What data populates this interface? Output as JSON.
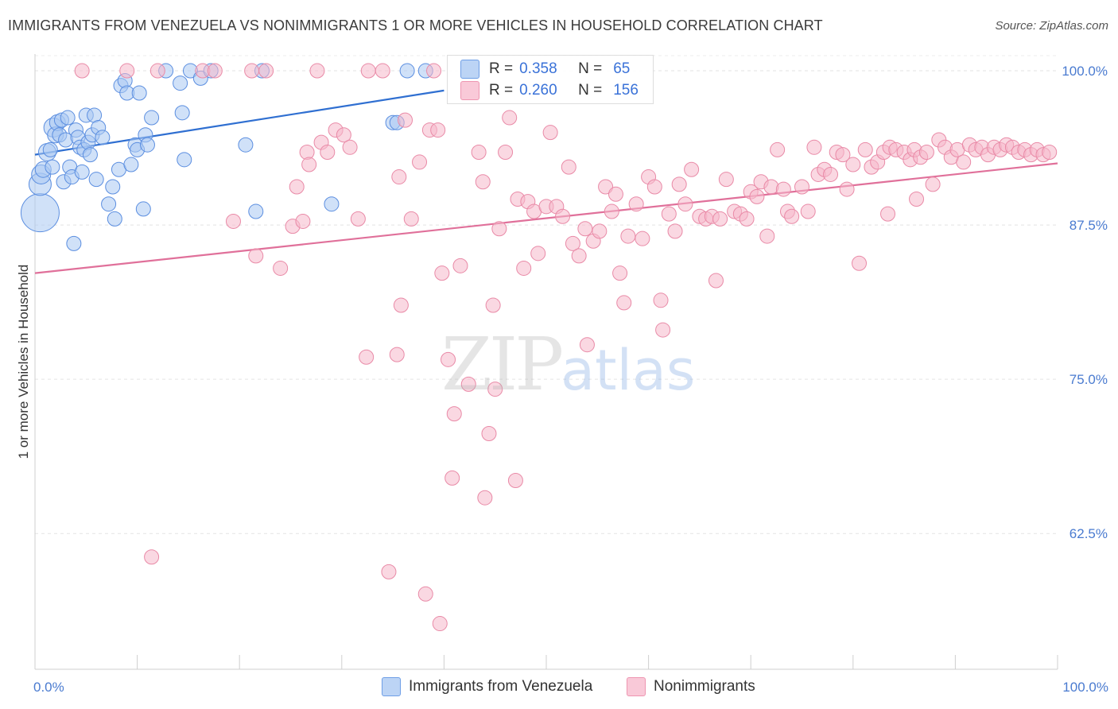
{
  "chart_data": {
    "type": "scatter",
    "title": "IMMIGRANTS FROM VENEZUELA VS NONIMMIGRANTS 1 OR MORE VEHICLES IN HOUSEHOLD CORRELATION CHART",
    "source": "Source: ZipAtlas.com",
    "xlabel": "",
    "ylabel": "1 or more Vehicles in Household",
    "xlim": [
      0,
      100
    ],
    "ylim": [
      51.5,
      102
    ],
    "x_tick_labels": [
      {
        "value": 0,
        "label": "0.0%"
      },
      {
        "value": 100,
        "label": "100.0%"
      }
    ],
    "y_ticks": [
      {
        "value": 100,
        "label": "100.0%"
      },
      {
        "value": 87.5,
        "label": "87.5%"
      },
      {
        "value": 75,
        "label": "75.0%"
      },
      {
        "value": 62.5,
        "label": "62.5%"
      }
    ],
    "watermark": {
      "zip": "ZIP",
      "atlas": "atlas"
    },
    "legend": {
      "series": [
        {
          "r_label": "R =",
          "r_value": "0.358",
          "n_label": "N =",
          "n_value": "65",
          "color": "#a9c8f2"
        },
        {
          "r_label": "R =",
          "r_value": "0.260",
          "n_label": "N =",
          "n_value": "156",
          "color": "#f6b8cb"
        }
      ]
    },
    "series": [
      {
        "name": "Immigrants from Venezuela",
        "color": "#a9c8f2",
        "stroke": "#5b8ee0",
        "trend_color": "#2f6fd1",
        "trend": {
          "x0": 0,
          "y0": 93.2,
          "x1": 40,
          "y1": 98.4
        },
        "points": [
          [
            0.5,
            88.5,
            24
          ],
          [
            0.5,
            90.8,
            14
          ],
          [
            0.6,
            91.6,
            12
          ],
          [
            0.8,
            92.0,
            10
          ],
          [
            1.2,
            93.4,
            11
          ],
          [
            1.5,
            93.6,
            9
          ],
          [
            1.7,
            92.2,
            9
          ],
          [
            1.8,
            95.4,
            12
          ],
          [
            2.0,
            94.8,
            10
          ],
          [
            2.2,
            95.8,
            10
          ],
          [
            2.4,
            94.8,
            9
          ],
          [
            2.6,
            96.0,
            9
          ],
          [
            2.8,
            91.0,
            9
          ],
          [
            3.0,
            94.4,
            9
          ],
          [
            3.2,
            96.2,
            9
          ],
          [
            3.4,
            92.2,
            9
          ],
          [
            3.6,
            91.4,
            9
          ],
          [
            3.8,
            86.0,
            9
          ],
          [
            4.0,
            95.2,
            9
          ],
          [
            4.2,
            94.6,
            9
          ],
          [
            4.4,
            93.8,
            9
          ],
          [
            4.6,
            91.8,
            9
          ],
          [
            4.8,
            93.6,
            9
          ],
          [
            5.0,
            96.4,
            9
          ],
          [
            5.2,
            94.2,
            9
          ],
          [
            5.4,
            93.2,
            9
          ],
          [
            5.6,
            94.8,
            9
          ],
          [
            5.8,
            96.4,
            9
          ],
          [
            6.0,
            91.2,
            9
          ],
          [
            6.2,
            95.4,
            9
          ],
          [
            6.6,
            94.6,
            9
          ],
          [
            7.2,
            89.2,
            9
          ],
          [
            7.6,
            90.6,
            9
          ],
          [
            7.8,
            88.0,
            9
          ],
          [
            8.2,
            92.0,
            9
          ],
          [
            8.4,
            98.8,
            9
          ],
          [
            8.8,
            99.2,
            9
          ],
          [
            9.0,
            98.2,
            9
          ],
          [
            9.4,
            92.4,
            9
          ],
          [
            9.8,
            94.0,
            9
          ],
          [
            10.0,
            93.6,
            9
          ],
          [
            10.2,
            98.2,
            9
          ],
          [
            10.6,
            88.8,
            9
          ],
          [
            10.8,
            94.8,
            9
          ],
          [
            11.0,
            94.0,
            9
          ],
          [
            11.4,
            96.2,
            9
          ],
          [
            12.8,
            100.0,
            9
          ],
          [
            14.2,
            99.0,
            9
          ],
          [
            14.4,
            96.6,
            9
          ],
          [
            14.6,
            92.8,
            9
          ],
          [
            15.2,
            100.0,
            9
          ],
          [
            16.2,
            99.4,
            9
          ],
          [
            17.2,
            100.0,
            9
          ],
          [
            20.6,
            94.0,
            9
          ],
          [
            21.6,
            88.6,
            9
          ],
          [
            22.2,
            100.0,
            9
          ],
          [
            29.0,
            89.2,
            9
          ],
          [
            35.0,
            95.8,
            9
          ],
          [
            35.4,
            95.8,
            9
          ],
          [
            36.4,
            100.0,
            9
          ],
          [
            38.2,
            100.0,
            9
          ]
        ]
      },
      {
        "name": "Nonimmigrants",
        "color": "#f6b8cb",
        "stroke": "#e98aa7",
        "trend_color": "#e0709a",
        "trend": {
          "x0": 0,
          "y0": 83.6,
          "x1": 100,
          "y1": 92.5
        },
        "points": [
          [
            4.6,
            100.0,
            9
          ],
          [
            9.0,
            100.0,
            9
          ],
          [
            12.0,
            100.0,
            9
          ],
          [
            16.4,
            100.0,
            9
          ],
          [
            17.6,
            100.0,
            9
          ],
          [
            21.2,
            100.0,
            9
          ],
          [
            22.6,
            100.0,
            9
          ],
          [
            27.6,
            100.0,
            9
          ],
          [
            32.6,
            100.0,
            9
          ],
          [
            34.0,
            100.0,
            9
          ],
          [
            39.0,
            100.0,
            9
          ],
          [
            11.4,
            60.6,
            9
          ],
          [
            19.4,
            87.8,
            9
          ],
          [
            21.6,
            85.0,
            9
          ],
          [
            24.0,
            84.0,
            9
          ],
          [
            25.2,
            87.4,
            9
          ],
          [
            25.6,
            90.6,
            9
          ],
          [
            26.2,
            87.8,
            9
          ],
          [
            26.6,
            93.4,
            9
          ],
          [
            26.8,
            92.4,
            9
          ],
          [
            28.0,
            94.2,
            9
          ],
          [
            28.6,
            93.4,
            9
          ],
          [
            29.4,
            95.2,
            9
          ],
          [
            30.2,
            94.8,
            9
          ],
          [
            30.8,
            93.8,
            9
          ],
          [
            31.6,
            88.0,
            9
          ],
          [
            32.4,
            76.8,
            9
          ],
          [
            34.6,
            59.4,
            9
          ],
          [
            35.4,
            77.0,
            9
          ],
          [
            35.6,
            91.4,
            9
          ],
          [
            35.8,
            81.0,
            9
          ],
          [
            36.2,
            96.0,
            9
          ],
          [
            36.8,
            88.0,
            9
          ],
          [
            37.6,
            92.6,
            9
          ],
          [
            38.2,
            57.6,
            9
          ],
          [
            38.6,
            95.2,
            9
          ],
          [
            39.4,
            95.2,
            9
          ],
          [
            39.8,
            83.6,
            9
          ],
          [
            39.6,
            55.2,
            9
          ],
          [
            40.4,
            76.6,
            9
          ],
          [
            40.8,
            67.0,
            9
          ],
          [
            41.0,
            72.2,
            9
          ],
          [
            41.6,
            84.2,
            9
          ],
          [
            42.4,
            74.6,
            9
          ],
          [
            43.4,
            93.4,
            9
          ],
          [
            43.8,
            91.0,
            9
          ],
          [
            44.0,
            65.4,
            9
          ],
          [
            44.4,
            70.6,
            9
          ],
          [
            44.8,
            81.0,
            9
          ],
          [
            45.0,
            74.2,
            9
          ],
          [
            45.4,
            87.2,
            9
          ],
          [
            46.0,
            93.4,
            9
          ],
          [
            46.4,
            96.2,
            9
          ],
          [
            47.0,
            66.8,
            9
          ],
          [
            47.2,
            89.6,
            9
          ],
          [
            47.8,
            84.0,
            9
          ],
          [
            48.2,
            89.4,
            9
          ],
          [
            48.8,
            88.6,
            9
          ],
          [
            49.2,
            85.2,
            9
          ],
          [
            50.0,
            89.0,
            9
          ],
          [
            50.4,
            95.0,
            9
          ],
          [
            51.0,
            89.0,
            9
          ],
          [
            51.6,
            88.2,
            9
          ],
          [
            52.2,
            92.2,
            9
          ],
          [
            52.6,
            86.0,
            9
          ],
          [
            53.2,
            85.0,
            9
          ],
          [
            53.8,
            87.2,
            9
          ],
          [
            54.0,
            77.8,
            9
          ],
          [
            54.6,
            86.2,
            9
          ],
          [
            55.2,
            87.0,
            9
          ],
          [
            55.8,
            90.6,
            9
          ],
          [
            56.4,
            88.6,
            9
          ],
          [
            56.8,
            90.0,
            9
          ],
          [
            57.2,
            83.6,
            9
          ],
          [
            57.6,
            81.2,
            9
          ],
          [
            58.0,
            86.6,
            9
          ],
          [
            58.8,
            89.2,
            9
          ],
          [
            59.4,
            86.4,
            9
          ],
          [
            60.0,
            91.4,
            9
          ],
          [
            60.6,
            90.6,
            9
          ],
          [
            61.2,
            81.4,
            9
          ],
          [
            61.4,
            79.0,
            9
          ],
          [
            62.0,
            88.4,
            9
          ],
          [
            62.6,
            87.0,
            9
          ],
          [
            63.0,
            90.8,
            9
          ],
          [
            63.6,
            89.2,
            9
          ],
          [
            64.2,
            92.0,
            9
          ],
          [
            65.0,
            88.2,
            9
          ],
          [
            65.6,
            88.0,
            9
          ],
          [
            66.2,
            88.2,
            9
          ],
          [
            66.6,
            83.0,
            9
          ],
          [
            67.0,
            88.0,
            9
          ],
          [
            67.6,
            91.2,
            9
          ],
          [
            68.4,
            88.6,
            9
          ],
          [
            69.0,
            88.4,
            9
          ],
          [
            69.6,
            88.0,
            9
          ],
          [
            70.0,
            90.2,
            9
          ],
          [
            70.6,
            89.8,
            9
          ],
          [
            71.0,
            91.0,
            9
          ],
          [
            71.6,
            86.6,
            9
          ],
          [
            72.0,
            90.6,
            9
          ],
          [
            72.6,
            93.6,
            9
          ],
          [
            73.2,
            90.4,
            9
          ],
          [
            73.6,
            88.6,
            9
          ],
          [
            74.0,
            88.2,
            9
          ],
          [
            75.0,
            90.6,
            9
          ],
          [
            75.6,
            88.6,
            9
          ],
          [
            76.2,
            93.8,
            9
          ],
          [
            76.6,
            91.6,
            9
          ],
          [
            77.2,
            92.0,
            9
          ],
          [
            77.8,
            91.6,
            9
          ],
          [
            78.4,
            93.4,
            9
          ],
          [
            79.0,
            93.2,
            9
          ],
          [
            79.4,
            90.4,
            9
          ],
          [
            80.0,
            92.4,
            9
          ],
          [
            80.6,
            84.4,
            9
          ],
          [
            81.2,
            93.6,
            9
          ],
          [
            81.8,
            92.2,
            9
          ],
          [
            82.4,
            92.6,
            9
          ],
          [
            83.0,
            93.4,
            9
          ],
          [
            83.6,
            93.8,
            9
          ],
          [
            84.2,
            93.6,
            9
          ],
          [
            85.0,
            93.4,
            9
          ],
          [
            85.6,
            92.8,
            9
          ],
          [
            86.0,
            93.6,
            9
          ],
          [
            86.6,
            93.0,
            9
          ],
          [
            87.2,
            93.4,
            9
          ],
          [
            87.8,
            90.8,
            9
          ],
          [
            88.4,
            94.4,
            9
          ],
          [
            89.0,
            93.8,
            9
          ],
          [
            89.6,
            93.0,
            9
          ],
          [
            90.2,
            93.6,
            9
          ],
          [
            90.8,
            92.6,
            9
          ],
          [
            91.4,
            94.0,
            9
          ],
          [
            92.0,
            93.6,
            9
          ],
          [
            92.6,
            93.8,
            9
          ],
          [
            93.2,
            93.2,
            9
          ],
          [
            93.8,
            93.8,
            9
          ],
          [
            94.4,
            93.6,
            9
          ],
          [
            95.0,
            94.0,
            9
          ],
          [
            95.6,
            93.8,
            9
          ],
          [
            96.2,
            93.4,
            9
          ],
          [
            96.8,
            93.6,
            9
          ],
          [
            97.4,
            93.2,
            9
          ],
          [
            98.0,
            93.6,
            9
          ],
          [
            98.6,
            93.2,
            9
          ],
          [
            99.2,
            93.4,
            9
          ],
          [
            83.4,
            88.4,
            9
          ],
          [
            86.2,
            89.6,
            9
          ]
        ]
      }
    ]
  }
}
